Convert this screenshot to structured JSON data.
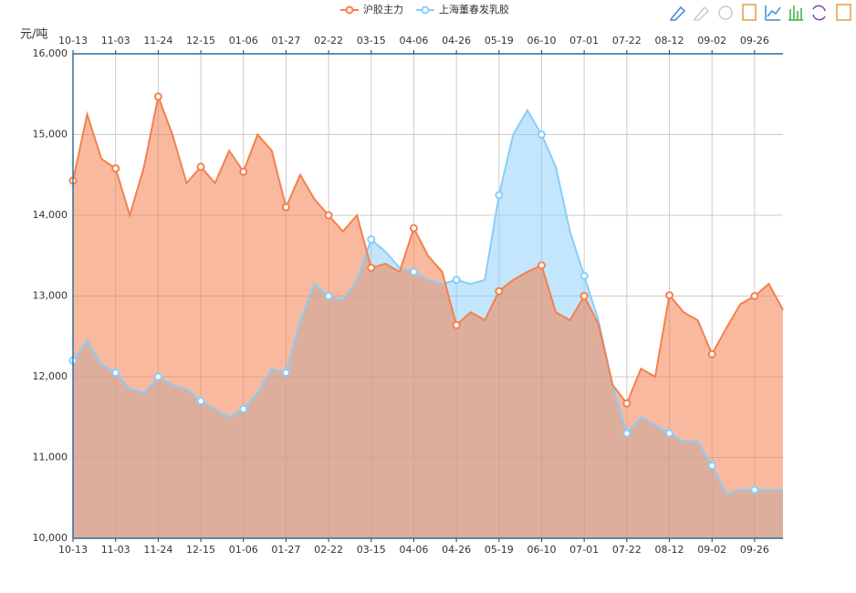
{
  "chart_data": {
    "type": "line",
    "y_label": "元/吨",
    "categories": [
      "10-13",
      null,
      null,
      "11-03",
      null,
      null,
      "11-24",
      null,
      null,
      "12-15",
      null,
      null,
      "01-06",
      null,
      null,
      "01-27",
      null,
      null,
      "02-22",
      null,
      null,
      "03-15",
      null,
      null,
      "04-06",
      null,
      null,
      "04-26",
      null,
      null,
      "05-19",
      null,
      null,
      "06-10",
      null,
      null,
      "07-01",
      null,
      null,
      "07-22",
      null,
      null,
      "08-12",
      null,
      null,
      "09-02",
      null,
      null,
      "09-26",
      null,
      null
    ],
    "series": [
      {
        "name": "沪胶主力",
        "color": "#f4804e",
        "values": [
          14430,
          15250,
          14700,
          14580,
          14000,
          14600,
          15470,
          15000,
          14400,
          14600,
          14400,
          14800,
          14540,
          15000,
          14800,
          14100,
          14500,
          14200,
          14000,
          13800,
          14000,
          13350,
          13400,
          13300,
          13840,
          13500,
          13300,
          12640,
          12800,
          12700,
          13060,
          13200,
          13300,
          13380,
          12800,
          12700,
          13000,
          12650,
          11900,
          11670,
          12100,
          12000,
          13010,
          12800,
          12700,
          12280,
          12600,
          12900,
          13000,
          13150,
          12830
        ]
      },
      {
        "name": "上海董春发乳胶",
        "color": "#87cefa",
        "values": [
          12200,
          12450,
          12150,
          12050,
          11850,
          11800,
          12000,
          11900,
          11850,
          11700,
          11600,
          11500,
          11600,
          11800,
          12100,
          12050,
          12700,
          13150,
          13000,
          12950,
          13200,
          13700,
          13550,
          13350,
          13300,
          13200,
          13150,
          13200,
          13150,
          13200,
          14250,
          15000,
          15300,
          15000,
          14600,
          13800,
          13250,
          12700,
          11900,
          11300,
          11500,
          11400,
          11300,
          11200,
          11200,
          10900,
          10550,
          10600,
          10600,
          10600,
          10600
        ]
      }
    ],
    "ylim": [
      10000,
      16000
    ],
    "yticks": [
      {
        "value": 10000,
        "label": "10,000"
      },
      {
        "value": 11000,
        "label": "11,000"
      },
      {
        "value": 12000,
        "label": "12,000"
      },
      {
        "value": 13000,
        "label": "13,000"
      },
      {
        "value": 14000,
        "label": "14,000"
      },
      {
        "value": 15000,
        "label": "15,000"
      },
      {
        "value": 16000,
        "label": "16,000"
      }
    ],
    "grid": true
  }
}
